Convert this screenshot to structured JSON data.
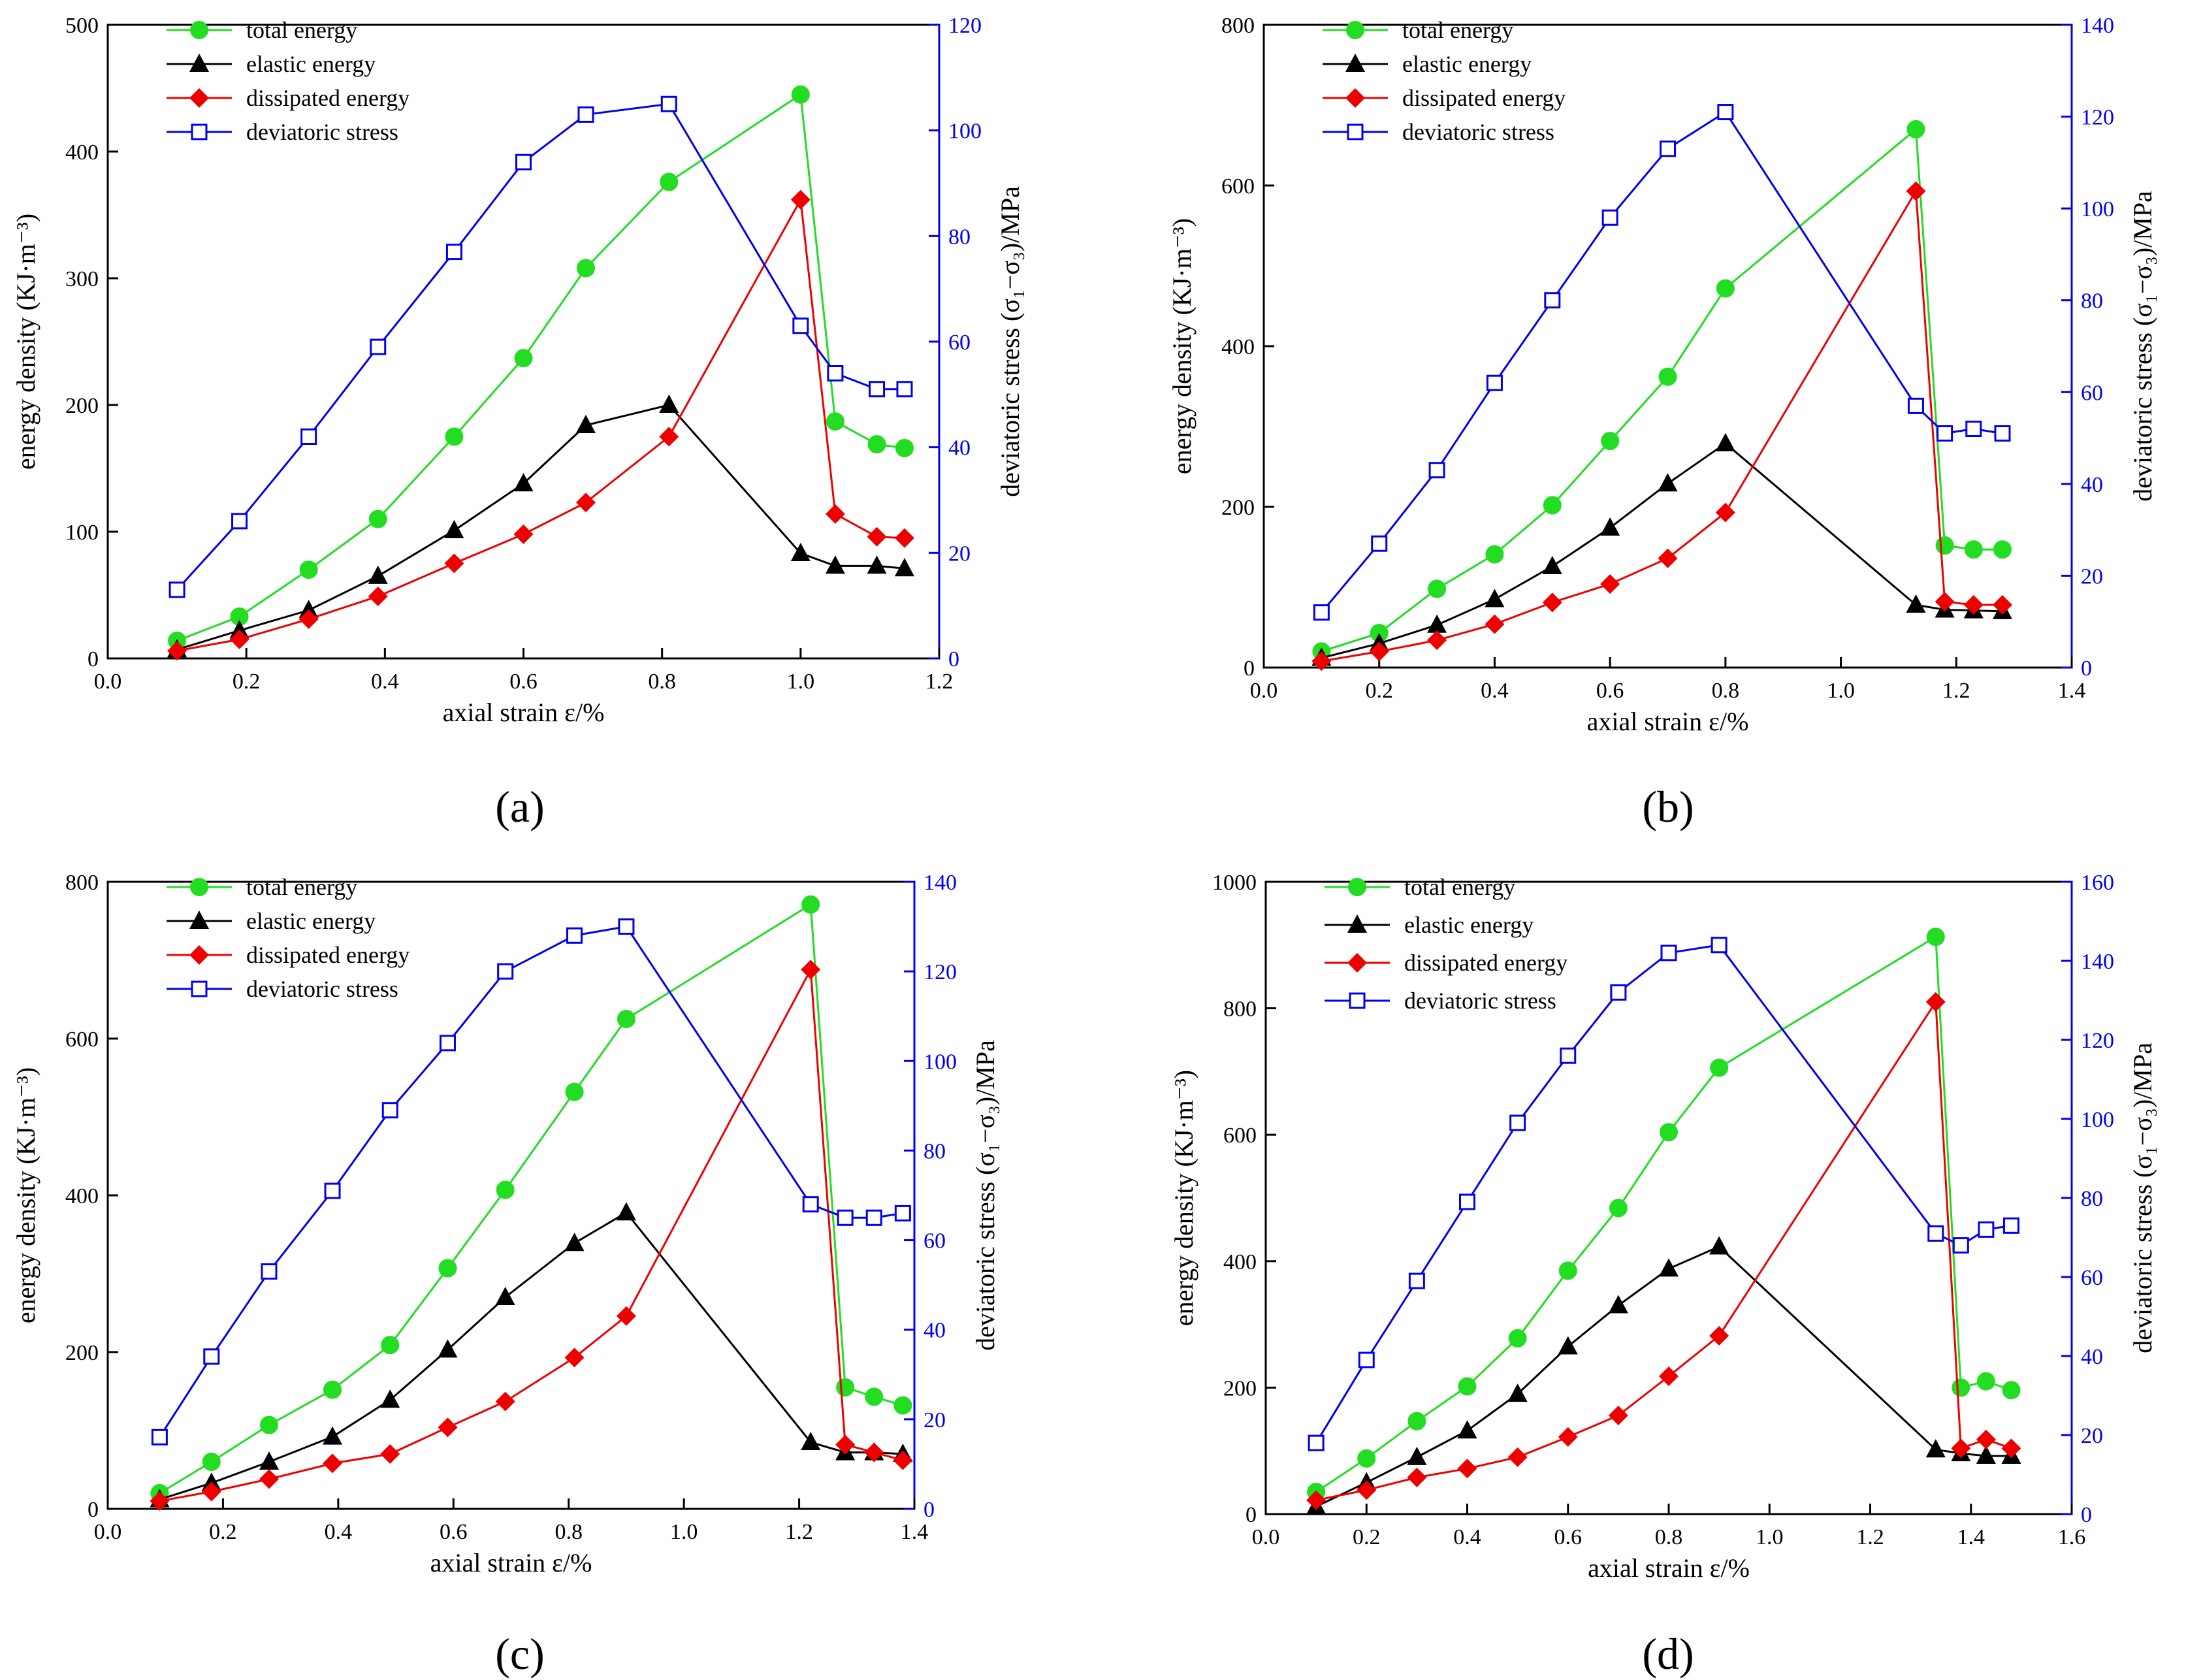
{
  "panels": [
    {
      "panel_label": "(a)",
      "chart_data": {
        "type": "line",
        "xlabel": "axial strain  ε/%",
        "ylabel_left": "energy density (KJ·m⁻³)",
        "ylabel_right": "deviatoric stress  (σ₁−σ₃)/MPa",
        "xlim": [
          0.0,
          1.2
        ],
        "ylim_left": [
          0,
          500
        ],
        "ylim_right": [
          0,
          120
        ],
        "x_ticks": [
          "0.0",
          "0.2",
          "0.4",
          "0.6",
          "0.8",
          "1.0",
          "1.2"
        ],
        "y_left_ticks": [
          "0",
          "100",
          "200",
          "300",
          "400",
          "500"
        ],
        "y_right_ticks": [
          "0",
          "20",
          "40",
          "60",
          "80",
          "100",
          "120"
        ],
        "legend_position": "top-left",
        "series": [
          {
            "name": "total energy",
            "axis": "left",
            "color": "#22dd22",
            "marker": "circle",
            "x": [
              0.1,
              0.19,
              0.29,
              0.39,
              0.5,
              0.6,
              0.69,
              0.81,
              1.0,
              1.05,
              1.11,
              1.15
            ],
            "y": [
              14,
              33,
              70,
              110,
              175,
              237,
              308,
              376,
              445,
              187,
              169,
              166
            ]
          },
          {
            "name": "elastic energy",
            "axis": "left",
            "color": "#000000",
            "marker": "triangle",
            "x": [
              0.1,
              0.19,
              0.29,
              0.39,
              0.5,
              0.6,
              0.69,
              0.81,
              1.0,
              1.05,
              1.11,
              1.15
            ],
            "y": [
              7,
              22,
              38,
              65,
              101,
              138,
              184,
              200,
              83,
              73,
              73,
              71
            ]
          },
          {
            "name": "dissipated energy",
            "axis": "left",
            "color": "#ee0000",
            "marker": "diamond",
            "x": [
              0.1,
              0.19,
              0.29,
              0.39,
              0.5,
              0.6,
              0.69,
              0.81,
              1.0,
              1.05,
              1.11,
              1.15
            ],
            "y": [
              6,
              15,
              31,
              49,
              75,
              98,
              123,
              175,
              362,
              114,
              96,
              95
            ]
          },
          {
            "name": "deviatoric stress",
            "axis": "right",
            "color": "#0000ee",
            "marker": "square",
            "x": [
              0.1,
              0.19,
              0.29,
              0.39,
              0.5,
              0.6,
              0.69,
              0.81,
              1.0,
              1.05,
              1.11,
              1.15
            ],
            "y": [
              13,
              26,
              42,
              59,
              77,
              94,
              103,
              105,
              63,
              54,
              51,
              51
            ]
          }
        ]
      }
    },
    {
      "panel_label": "(b)",
      "chart_data": {
        "type": "line",
        "xlabel": "axial strain  ε/%",
        "ylabel_left": "energy density (KJ·m⁻³)",
        "ylabel_right": "deviatoric stress  (σ₁−σ₃)/MPa",
        "xlim": [
          0.0,
          1.4
        ],
        "ylim_left": [
          0,
          800
        ],
        "ylim_right": [
          0,
          140
        ],
        "x_ticks": [
          "0.0",
          "0.2",
          "0.4",
          "0.6",
          "0.8",
          "1.0",
          "1.2",
          "1.4"
        ],
        "y_left_ticks": [
          "0",
          "200",
          "400",
          "600",
          "800"
        ],
        "y_right_ticks": [
          "0",
          "20",
          "40",
          "60",
          "80",
          "100",
          "120",
          "140"
        ],
        "legend_position": "top-left",
        "series": [
          {
            "name": "total energy",
            "axis": "left",
            "color": "#22dd22",
            "marker": "circle",
            "x": [
              0.1,
              0.2,
              0.3,
              0.4,
              0.5,
              0.6,
              0.7,
              0.8,
              1.13,
              1.18,
              1.23,
              1.28
            ],
            "y": [
              20,
              43,
              98,
              141,
              202,
              282,
              362,
              472,
              670,
              152,
              147,
              147
            ]
          },
          {
            "name": "elastic energy",
            "axis": "left",
            "color": "#000000",
            "marker": "triangle",
            "x": [
              0.1,
              0.2,
              0.3,
              0.4,
              0.5,
              0.6,
              0.7,
              0.8,
              1.13,
              1.18,
              1.23,
              1.28
            ],
            "y": [
              12,
              30,
              53,
              85,
              126,
              174,
              229,
              279,
              78,
              72,
              71,
              70
            ]
          },
          {
            "name": "dissipated energy",
            "axis": "left",
            "color": "#ee0000",
            "marker": "diamond",
            "x": [
              0.1,
              0.2,
              0.3,
              0.4,
              0.5,
              0.6,
              0.7,
              0.8,
              1.13,
              1.18,
              1.23,
              1.28
            ],
            "y": [
              8,
              20,
              34,
              54,
              81,
              104,
              136,
              193,
              593,
              82,
              78,
              78
            ]
          },
          {
            "name": "deviatoric stress",
            "axis": "right",
            "color": "#0000ee",
            "marker": "square",
            "x": [
              0.1,
              0.2,
              0.3,
              0.4,
              0.5,
              0.6,
              0.7,
              0.8,
              1.13,
              1.18,
              1.23,
              1.28
            ],
            "y": [
              12,
              27,
              43,
              62,
              80,
              98,
              113,
              121,
              57,
              51,
              52,
              51
            ]
          }
        ]
      }
    },
    {
      "panel_label": "(c)",
      "chart_data": {
        "type": "line",
        "xlabel": "axial strain  ε/%",
        "ylabel_left": "energy density (KJ·m⁻³)",
        "ylabel_right": "deviatoric stress  (σ₁−σ₃)/MPa",
        "xlim": [
          0.0,
          1.4
        ],
        "ylim_left": [
          0,
          800
        ],
        "ylim_right": [
          0,
          140
        ],
        "x_ticks": [
          "0.0",
          "0.2",
          "0.4",
          "0.6",
          "0.8",
          "1.0",
          "1.2",
          "1.4"
        ],
        "y_left_ticks": [
          "0",
          "200",
          "400",
          "600",
          "800"
        ],
        "y_right_ticks": [
          "0",
          "20",
          "40",
          "60",
          "80",
          "100",
          "120",
          "140"
        ],
        "legend_position": "top-left",
        "series": [
          {
            "name": "total energy",
            "axis": "left",
            "color": "#22dd22",
            "marker": "circle",
            "x": [
              0.09,
              0.18,
              0.28,
              0.39,
              0.49,
              0.59,
              0.69,
              0.81,
              0.9,
              1.22,
              1.28,
              1.33,
              1.38
            ],
            "y": [
              20,
              60,
              107,
              152,
              209,
              307,
              407,
              532,
              625,
              771,
              155,
              143,
              132
            ]
          },
          {
            "name": "elastic energy",
            "axis": "left",
            "color": "#000000",
            "marker": "triangle",
            "x": [
              0.09,
              0.18,
              0.28,
              0.39,
              0.49,
              0.59,
              0.69,
              0.81,
              0.9,
              1.22,
              1.28,
              1.33,
              1.38
            ],
            "y": [
              12,
              33,
              60,
              92,
              139,
              203,
              270,
              339,
              378,
              85,
              72,
              72,
              70
            ]
          },
          {
            "name": "dissipated energy",
            "axis": "left",
            "color": "#ee0000",
            "marker": "diamond",
            "x": [
              0.09,
              0.18,
              0.28,
              0.39,
              0.49,
              0.59,
              0.69,
              0.81,
              0.9,
              1.22,
              1.28,
              1.33,
              1.38
            ],
            "y": [
              10,
              22,
              38,
              58,
              70,
              104,
              137,
              193,
              246,
              688,
              82,
              72,
              62
            ]
          },
          {
            "name": "deviatoric stress",
            "axis": "right",
            "color": "#0000ee",
            "marker": "square",
            "x": [
              0.09,
              0.18,
              0.28,
              0.39,
              0.49,
              0.59,
              0.69,
              0.81,
              0.9,
              1.22,
              1.28,
              1.33,
              1.38
            ],
            "y": [
              16,
              34,
              53,
              71,
              89,
              104,
              120,
              128,
              130,
              68,
              65,
              65,
              66
            ]
          }
        ]
      }
    },
    {
      "panel_label": "(d)",
      "chart_data": {
        "type": "line",
        "xlabel": "axial strain  ε/%",
        "ylabel_left": "energy density  (KJ·m⁻³)",
        "ylabel_right": "deviatoric stress  (σ₁−σ₃)/MPa",
        "xlim": [
          0.0,
          1.6
        ],
        "ylim_left": [
          0,
          1000
        ],
        "ylim_right": [
          0,
          160
        ],
        "x_ticks": [
          "0.0",
          "0.2",
          "0.4",
          "0.6",
          "0.8",
          "1.0",
          "1.2",
          "1.4",
          "1.6"
        ],
        "y_left_ticks": [
          "0",
          "200",
          "400",
          "600",
          "800",
          "1000"
        ],
        "y_right_ticks": [
          "0",
          "20",
          "40",
          "60",
          "80",
          "100",
          "120",
          "140",
          "160"
        ],
        "legend_position": "top-left",
        "series": [
          {
            "name": "total energy",
            "axis": "left",
            "color": "#22dd22",
            "marker": "circle",
            "x": [
              0.1,
              0.2,
              0.3,
              0.4,
              0.5,
              0.6,
              0.7,
              0.8,
              0.9,
              1.33,
              1.38,
              1.43,
              1.48
            ],
            "y": [
              35,
              88,
              147,
              202,
              278,
              385,
              484,
              604,
              706,
              913,
              200,
              210,
              196
            ]
          },
          {
            "name": "elastic energy",
            "axis": "left",
            "color": "#000000",
            "marker": "triangle",
            "x": [
              0.1,
              0.2,
              0.3,
              0.4,
              0.5,
              0.6,
              0.7,
              0.8,
              0.9,
              1.33,
              1.38,
              1.43,
              1.48
            ],
            "y": [
              12,
              50,
              90,
              132,
              190,
              265,
              330,
              388,
              423,
              102,
              96,
              92,
              92
            ]
          },
          {
            "name": "dissipated energy",
            "axis": "left",
            "color": "#ee0000",
            "marker": "diamond",
            "x": [
              0.1,
              0.2,
              0.3,
              0.4,
              0.5,
              0.6,
              0.7,
              0.8,
              0.9,
              1.33,
              1.38,
              1.43,
              1.48
            ],
            "y": [
              22,
              38,
              58,
              72,
              90,
              122,
              156,
              218,
              282,
              810,
              104,
              118,
              104
            ]
          },
          {
            "name": "deviatoric stress",
            "axis": "right",
            "color": "#0000ee",
            "marker": "square",
            "x": [
              0.1,
              0.2,
              0.3,
              0.4,
              0.5,
              0.6,
              0.7,
              0.8,
              0.9,
              1.33,
              1.38,
              1.43,
              1.48
            ],
            "y": [
              18,
              39,
              59,
              79,
              99,
              116,
              132,
              142,
              144,
              71,
              68,
              72,
              73
            ]
          }
        ]
      }
    }
  ]
}
